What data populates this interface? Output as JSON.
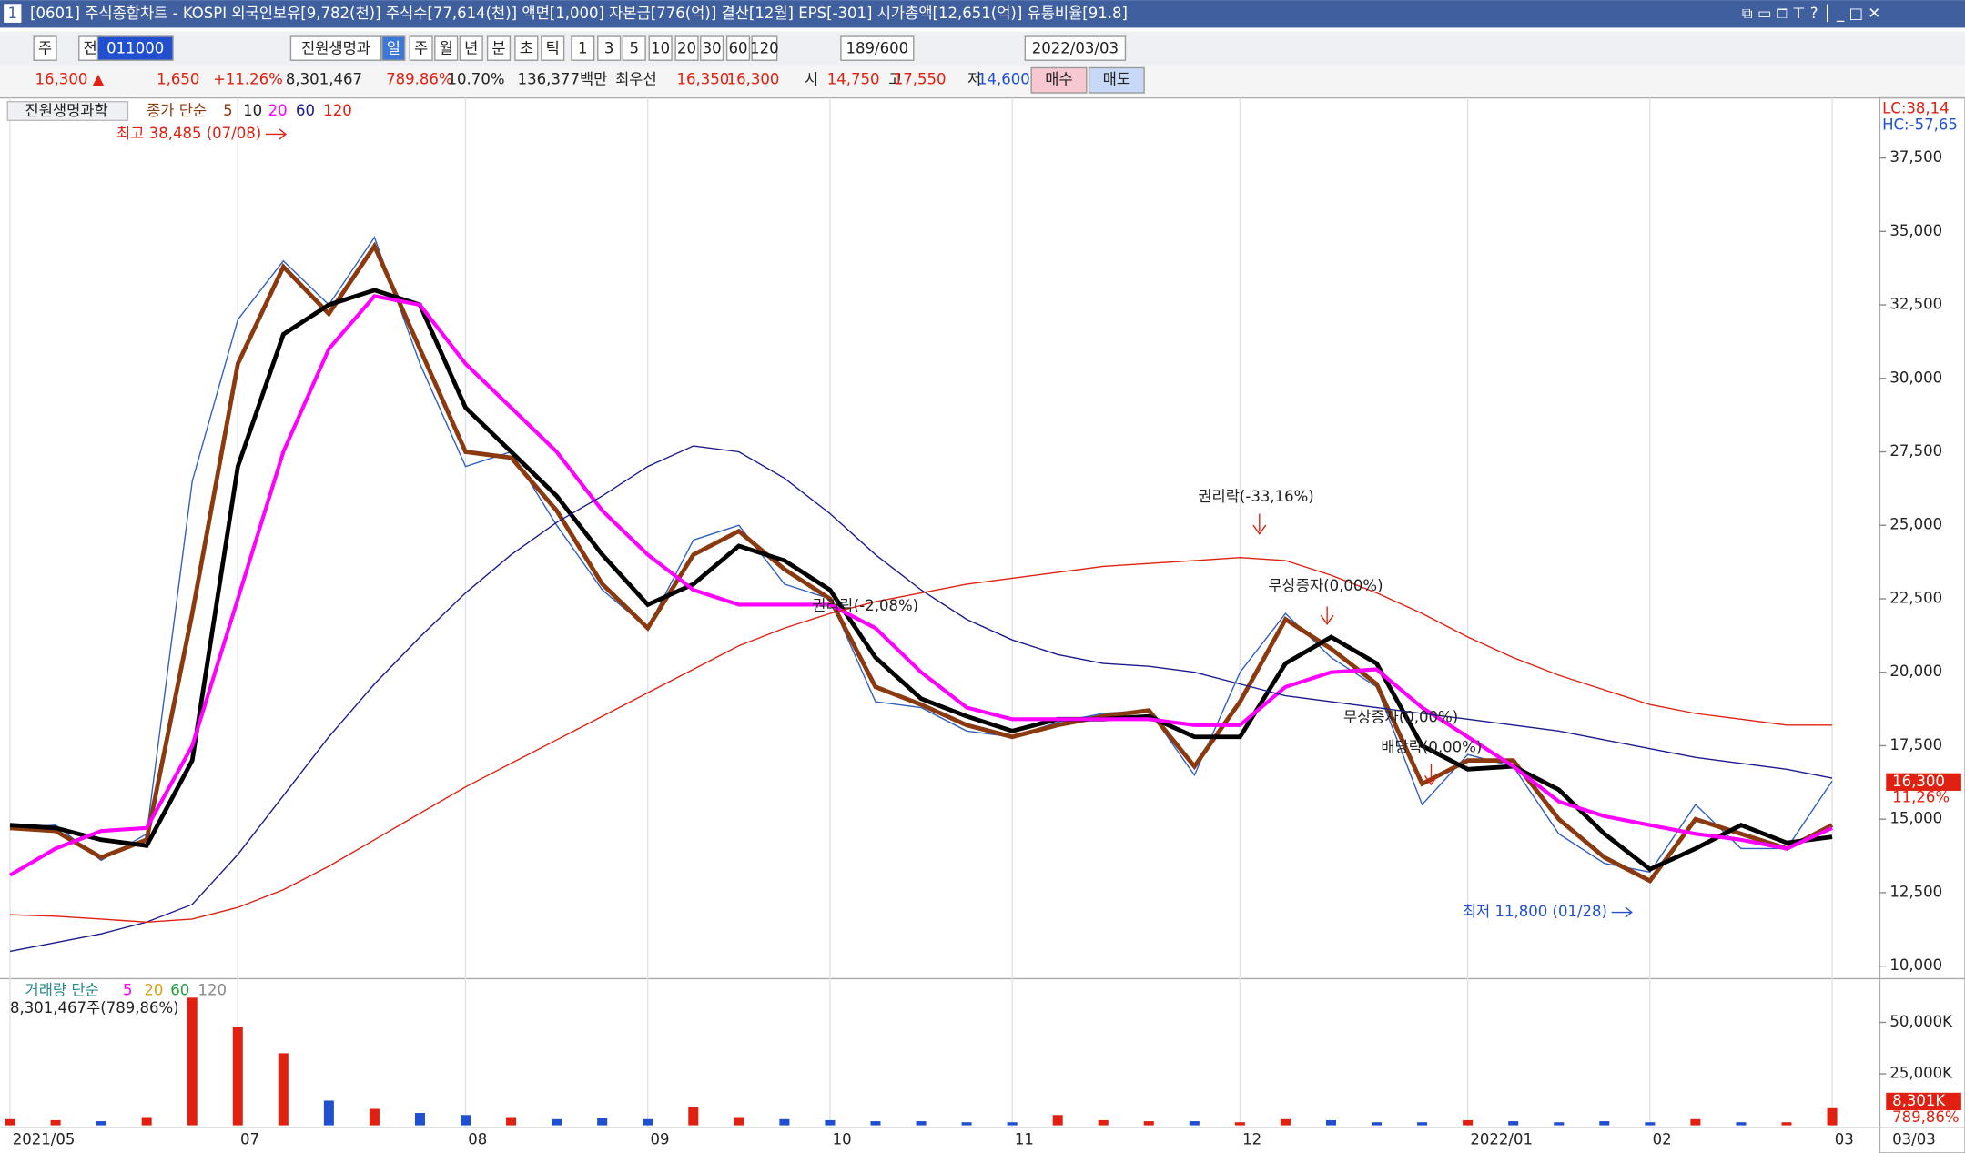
{
  "window": {
    "number": "1",
    "title": "[0601] 주식종합차트 - KOSPI 외국인보유[9,782(천)] 주식수[77,614(천)] 액면[1,000] 자본금[776(억)] 결산[12월] EPS[-301] 시가총액[12,651(억)] 유통비율[91.8]"
  },
  "toolbar": {
    "items": [
      "주",
      "전",
      "011000",
      "진원생명과",
      "일",
      "주",
      "월",
      "년",
      "분",
      "초",
      "틱",
      "1",
      "3",
      "5",
      "10",
      "20",
      "30",
      "60",
      "120",
      "189/600",
      "2022/03/03"
    ]
  },
  "quote": {
    "items": [
      "16,300 ▲",
      "1,650",
      "+11.26%",
      "8,301,467",
      "789.86%",
      "10.70%",
      "136,377백만",
      "최우선",
      "16,350",
      "16,300",
      "시",
      "14,750",
      "고",
      "17,550",
      "저",
      "14,600"
    ],
    "buy": "매수",
    "sell": "매도"
  },
  "chart_data": [
    {
      "type": "line",
      "legend_title": "종가 단순",
      "lc": "LC:38,14",
      "hc": "HC:-57,65",
      "categories": [
        "2021/05",
        null,
        null,
        null,
        null,
        "07",
        null,
        null,
        null,
        null,
        "08",
        null,
        null,
        null,
        "09",
        null,
        null,
        null,
        "10",
        null,
        null,
        null,
        "11",
        null,
        null,
        null,
        null,
        "12",
        null,
        null,
        null,
        null,
        "2022/01",
        null,
        null,
        null,
        "02",
        null,
        null,
        null,
        "03"
      ],
      "last_date": "03/03",
      "series": [
        {
          "name": "진원생명과학",
          "color": "#2f5fc0",
          "values": [
            14700,
            14800,
            13600,
            14500,
            26500,
            32000,
            34000,
            32500,
            34800,
            30500,
            27000,
            27500,
            25000,
            22800,
            21500,
            24500,
            25000,
            23000,
            22500,
            19000,
            18800,
            18000,
            17800,
            18300,
            18600,
            18700,
            16500,
            20000,
            22000,
            20500,
            19500,
            15500,
            17200,
            16800,
            14500,
            13500,
            13200,
            15500,
            14000,
            14000,
            16300
          ]
        },
        {
          "name": "5",
          "color": "#8b3a0f",
          "values": [
            14700,
            14600,
            13700,
            14300,
            22000,
            30500,
            33800,
            32200,
            34500,
            31000,
            27500,
            27300,
            25500,
            23000,
            21500,
            24000,
            24800,
            23500,
            22500,
            19500,
            18900,
            18200,
            17800,
            18200,
            18500,
            18700,
            16800,
            19000,
            21800,
            20800,
            19600,
            16200,
            17000,
            17000,
            15000,
            13700,
            12900,
            15000,
            14500,
            14000,
            14800
          ]
        },
        {
          "name": "10",
          "color": "#000000",
          "values": [
            14800,
            14700,
            14300,
            14100,
            17000,
            27000,
            31500,
            32500,
            33000,
            32500,
            29000,
            27500,
            26000,
            24000,
            22300,
            23000,
            24300,
            23800,
            22800,
            20500,
            19100,
            18500,
            18000,
            18400,
            18400,
            18500,
            17800,
            17800,
            20300,
            21200,
            20300,
            17500,
            16700,
            16800,
            16000,
            14500,
            13300,
            14000,
            14800,
            14200,
            14400
          ]
        },
        {
          "name": "20",
          "color": "#ff00ff",
          "values": [
            13100,
            14000,
            14600,
            14700,
            17500,
            22500,
            27500,
            31000,
            32800,
            32500,
            30500,
            29000,
            27500,
            25500,
            24000,
            22800,
            22300,
            22300,
            22300,
            21500,
            20000,
            18800,
            18400,
            18400,
            18400,
            18400,
            18200,
            18200,
            19500,
            20000,
            20100,
            18800,
            17800,
            16800,
            15600,
            15100,
            14800,
            14500,
            14300,
            14000,
            14700
          ]
        },
        {
          "name": "60",
          "color": "#1a1a8c",
          "values": [
            10500,
            10800,
            11100,
            11500,
            12100,
            13800,
            15800,
            17800,
            19600,
            21200,
            22700,
            24000,
            25100,
            26000,
            27000,
            27700,
            27500,
            26600,
            25400,
            24000,
            22800,
            21800,
            21100,
            20600,
            20300,
            20200,
            20000,
            19600,
            19200,
            19000,
            18800,
            18600,
            18400,
            18200,
            18000,
            17700,
            17400,
            17100,
            16900,
            16700,
            16400
          ]
        },
        {
          "name": "120",
          "color": "#e02010",
          "values": [
            11750,
            11700,
            11600,
            11500,
            11600,
            12000,
            12600,
            13400,
            14300,
            15200,
            16100,
            16900,
            17700,
            18500,
            19300,
            20100,
            20900,
            21500,
            22000,
            22400,
            22700,
            23000,
            23200,
            23400,
            23600,
            23700,
            23800,
            23900,
            23800,
            23300,
            22700,
            22000,
            21200,
            20500,
            19900,
            19400,
            18900,
            18600,
            18400,
            18200,
            18200
          ]
        }
      ],
      "ylim": [
        9700,
        39460
      ],
      "yticks": [
        {
          "value": 10000,
          "label": "10,000"
        },
        {
          "value": 12500,
          "label": "12,500"
        },
        {
          "value": 15000,
          "label": "15,000"
        },
        {
          "value": 17500,
          "label": "17,500"
        },
        {
          "value": 20000,
          "label": "20,000"
        },
        {
          "value": 22500,
          "label": "22,500"
        },
        {
          "value": 25000,
          "label": "25,000"
        },
        {
          "value": 27500,
          "label": "27,500"
        },
        {
          "value": 30000,
          "label": "30,000"
        },
        {
          "value": 32500,
          "label": "32,500"
        },
        {
          "value": 35000,
          "label": "35,000"
        },
        {
          "value": 37500,
          "label": "37,500"
        }
      ],
      "last_label": "16,300",
      "change_label": "11,26%",
      "annotations": [
        "최고 38,485 (07/08)",
        "최저 11,800 (01/28)",
        "권리락(-33,16%)",
        "무상증자(0,00%)",
        "권리락(-2,08%)",
        "무상증자(0,00%)",
        "배당락(0,00%)"
      ]
    },
    {
      "type": "bar",
      "title": "거래량 단순",
      "ma_labels": [
        "5",
        "20",
        "60",
        "120"
      ],
      "summary": "8,301,467주(789,86%)",
      "up_color": "#e02010",
      "down_color": "#2050d0",
      "values": [
        3000,
        2500,
        2000,
        4000,
        62000,
        48000,
        35000,
        12000,
        8000,
        6000,
        5000,
        4000,
        3000,
        3500,
        3000,
        9000,
        4000,
        3000,
        2500,
        2000,
        2000,
        1500,
        1500,
        5000,
        2500,
        2000,
        2000,
        1500,
        3000,
        2500,
        1500,
        1500,
        2500,
        2000,
        1500,
        2000,
        1500,
        3000,
        1500,
        1500,
        8301
      ],
      "ylim": [
        0,
        70000
      ],
      "yticks": [
        {
          "value": 25000,
          "label": "25,000K"
        },
        {
          "value": 50000,
          "label": "50,000K"
        }
      ],
      "last_label": "8,301K",
      "change_label": "789,86%"
    }
  ]
}
